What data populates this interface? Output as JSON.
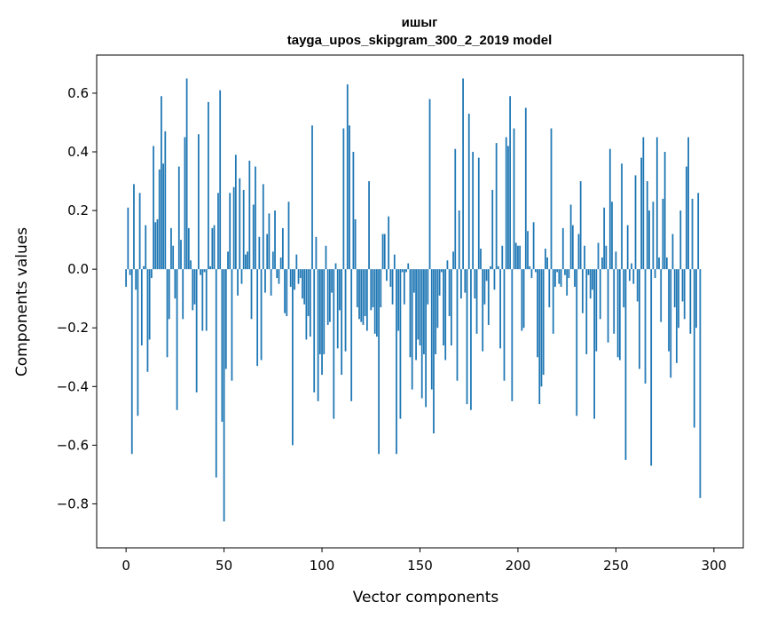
{
  "chart_data": {
    "type": "bar",
    "title_line1": "ишыг",
    "title_line2": "tayga_upos_skipgram_300_2_2019 model",
    "xlabel": "Vector components",
    "ylabel": "Components values",
    "xlim": [
      -15,
      315
    ],
    "ylim": [
      -0.95,
      0.73
    ],
    "xticks": [
      0,
      50,
      100,
      150,
      200,
      250,
      300
    ],
    "yticks": [
      -0.8,
      -0.6,
      -0.4,
      -0.2,
      0.0,
      0.2,
      0.4,
      0.6
    ],
    "ytick_labels": [
      "−0.8",
      "−0.6",
      "−0.4",
      "−0.2",
      "0.0",
      "0.2",
      "0.4",
      "0.6"
    ],
    "bar_color": "#1f77b4",
    "values": [
      -0.06,
      0.21,
      -0.02,
      -0.63,
      0.29,
      -0.07,
      -0.5,
      0.26,
      -0.26,
      0.01,
      0.15,
      -0.35,
      -0.24,
      -0.03,
      0.42,
      0.16,
      0.17,
      0.34,
      0.59,
      0.36,
      0.47,
      -0.3,
      -0.17,
      0.14,
      0.08,
      -0.1,
      -0.48,
      0.35,
      0.1,
      -0.17,
      0.45,
      0.65,
      0.14,
      0.03,
      -0.14,
      -0.12,
      -0.42,
      0.46,
      -0.02,
      -0.21,
      -0.01,
      -0.21,
      0.57,
      0.01,
      0.14,
      0.15,
      -0.71,
      0.26,
      0.61,
      -0.52,
      -0.86,
      -0.34,
      0.06,
      0.26,
      -0.38,
      0.28,
      0.39,
      -0.09,
      0.31,
      -0.05,
      0.27,
      0.05,
      0.06,
      0.37,
      -0.17,
      0.22,
      0.35,
      -0.33,
      0.11,
      -0.31,
      0.29,
      -0.08,
      0.12,
      0.19,
      -0.09,
      0.06,
      0.2,
      -0.03,
      -0.05,
      0.04,
      0.14,
      -0.15,
      -0.16,
      0.23,
      -0.06,
      -0.6,
      -0.07,
      0.05,
      -0.05,
      -0.03,
      -0.1,
      -0.12,
      -0.24,
      -0.16,
      -0.23,
      0.49,
      -0.42,
      0.11,
      -0.45,
      -0.29,
      -0.36,
      -0.29,
      0.08,
      -0.19,
      -0.18,
      -0.08,
      -0.51,
      0.02,
      -0.27,
      -0.14,
      -0.36,
      0.48,
      -0.28,
      0.63,
      0.49,
      -0.45,
      0.4,
      0.17,
      -0.13,
      -0.17,
      -0.18,
      -0.19,
      -0.16,
      -0.21,
      0.3,
      -0.14,
      -0.13,
      -0.22,
      -0.23,
      -0.63,
      -0.13,
      0.12,
      0.12,
      -0.04,
      0.18,
      -0.06,
      -0.12,
      0.05,
      -0.63,
      -0.21,
      -0.51,
      -0.01,
      -0.12,
      -0.01,
      0.02,
      -0.3,
      -0.41,
      -0.08,
      -0.31,
      -0.24,
      -0.26,
      -0.44,
      -0.29,
      -0.47,
      -0.12,
      0.58,
      -0.41,
      -0.56,
      -0.29,
      -0.2,
      -0.09,
      -0.01,
      -0.26,
      -0.31,
      0.03,
      -0.16,
      -0.26,
      0.06,
      0.41,
      -0.38,
      0.2,
      -0.1,
      0.65,
      -0.08,
      -0.46,
      0.53,
      -0.48,
      0.4,
      -0.1,
      -0.22,
      0.38,
      0.07,
      -0.28,
      -0.12,
      -0.04,
      -0.19,
      0.01,
      0.27,
      -0.07,
      0.43,
      0.01,
      -0.27,
      0.08,
      -0.38,
      0.45,
      0.42,
      0.59,
      -0.45,
      0.48,
      0.09,
      0.08,
      0.08,
      -0.21,
      -0.2,
      0.55,
      0.13,
      0.01,
      -0.03,
      0.16,
      -0.01,
      -0.3,
      -0.46,
      -0.4,
      -0.36,
      0.07,
      0.04,
      -0.13,
      0.48,
      -0.22,
      -0.06,
      -0.01,
      -0.05,
      -0.06,
      0.14,
      -0.02,
      -0.09,
      -0.03,
      0.22,
      0.15,
      -0.06,
      -0.5,
      0.12,
      0.3,
      -0.15,
      0.08,
      -0.29,
      -0.02,
      -0.1,
      -0.07,
      -0.51,
      -0.28,
      0.09,
      -0.17,
      0.04,
      0.21,
      0.08,
      -0.25,
      0.41,
      0.23,
      -0.22,
      0.06,
      -0.3,
      -0.31,
      0.36,
      -0.13,
      -0.65,
      0.15,
      -0.04,
      0.02,
      -0.05,
      0.32,
      -0.11,
      -0.34,
      0.38,
      0.45,
      -0.39,
      0.3,
      0.2,
      -0.67,
      0.23,
      -0.03,
      0.45,
      0.04,
      -0.18,
      0.24,
      0.4,
      0.04,
      -0.28,
      -0.37,
      0.12,
      -0.13,
      -0.32,
      -0.2,
      0.2,
      -0.11,
      -0.17,
      0.35,
      0.45,
      -0.22,
      0.24,
      -0.54,
      -0.2,
      0.26,
      -0.78,
      0.0
    ]
  }
}
